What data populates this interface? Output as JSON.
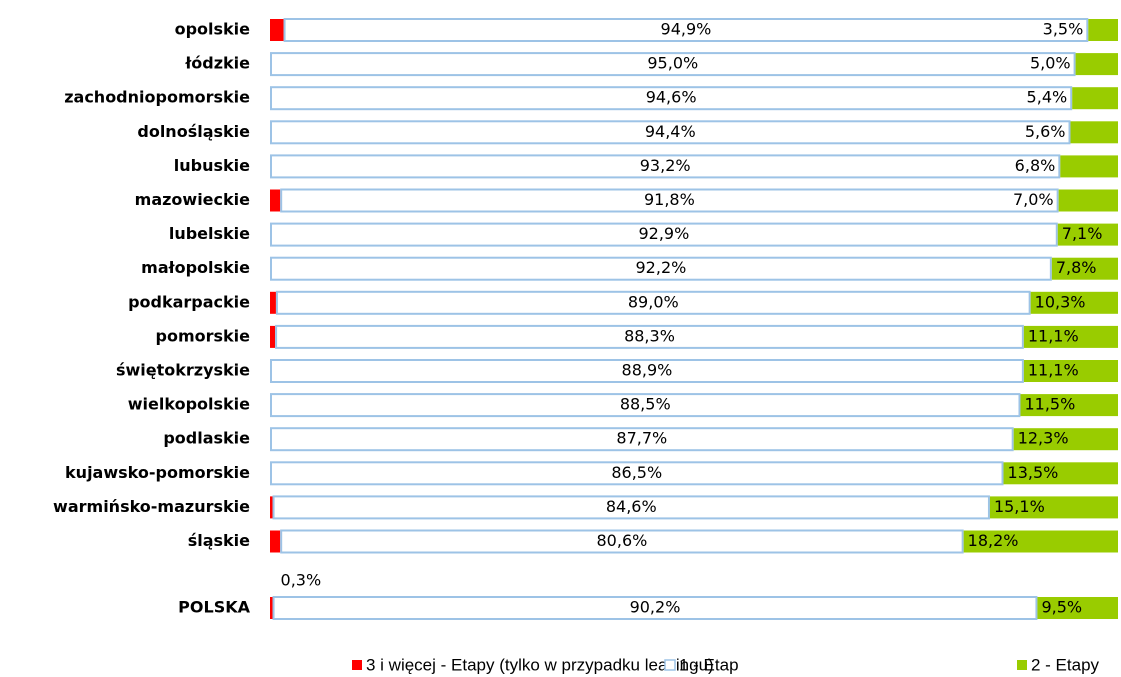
{
  "chart_data": {
    "type": "stacked_bar_horizontal",
    "categories": [
      "opolskie",
      "łódzkie",
      "zachodniopomorskie",
      "dolnośląskie",
      "lubuskie",
      "mazowieckie",
      "lubelskie",
      "małopolskie",
      "podkarpackie",
      "pomorskie",
      "świętokrzyskie",
      "wielkopolskie",
      "podlaskie",
      "kujawsko-pomorskie",
      "warmińsko-mazurskie",
      "śląskie",
      "POLSKA"
    ],
    "xlim": [
      0,
      100
    ],
    "series": [
      {
        "name": "3 i więcej - Etapy (tylko w przypadku leasingu)",
        "color": "#ff0000",
        "stroke": "#ff0000",
        "values": [
          1.6,
          null,
          null,
          null,
          null,
          1.2,
          null,
          null,
          0.7,
          0.6,
          null,
          null,
          null,
          null,
          0.3,
          1.2,
          0.3
        ],
        "value_labels": [
          "1,6%",
          null,
          null,
          null,
          null,
          "1,2%",
          null,
          null,
          "0,7%",
          "0,6%",
          null,
          null,
          null,
          null,
          "0,3%",
          "1,2%",
          "0,3%"
        ]
      },
      {
        "name": "1 - Etap",
        "color": "#ffffff",
        "stroke": "#9dc3e6",
        "values": [
          94.9,
          95.0,
          94.6,
          94.4,
          93.2,
          91.8,
          92.9,
          92.2,
          89.0,
          88.3,
          88.9,
          88.5,
          87.7,
          86.5,
          84.6,
          80.6,
          90.2
        ],
        "value_labels": [
          "94,9%",
          "95,0%",
          "94,6%",
          "94,4%",
          "93,2%",
          "91,8%",
          "92,9%",
          "92,2%",
          "89,0%",
          "88,3%",
          "88,9%",
          "88,5%",
          "87,7%",
          "86,5%",
          "84,6%",
          "80,6%",
          "90,2%"
        ]
      },
      {
        "name": "2 - Etapy",
        "color": "#99cc00",
        "stroke": "#99cc00",
        "values": [
          3.5,
          5.0,
          5.4,
          5.6,
          6.8,
          7.0,
          7.1,
          7.8,
          10.3,
          11.1,
          11.1,
          11.5,
          12.3,
          13.5,
          15.1,
          18.2,
          9.5
        ],
        "value_labels": [
          "3,5%",
          "5,0%",
          "5,4%",
          "5,6%",
          "6,8%",
          "7,0%",
          "7,1%",
          "7,8%",
          "10,3%",
          "11,1%",
          "11,1%",
          "11,5%",
          "12,3%",
          "13,5%",
          "15,1%",
          "18,2%",
          "9,5%"
        ]
      }
    ]
  }
}
